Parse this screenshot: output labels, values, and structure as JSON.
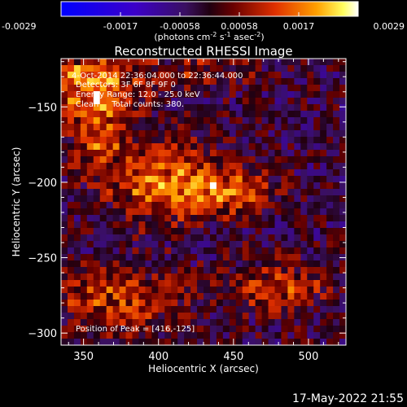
{
  "chart_data": {
    "type": "heatmap",
    "title": "Reconstructed RHESSI Image",
    "xlabel": "Heliocentric X (arcsec)",
    "ylabel": "Heliocentric Y (arcsec)",
    "xlim": [
      335,
      525
    ],
    "ylim": [
      -308,
      -118
    ],
    "x_ticks": [
      350,
      400,
      450,
      500
    ],
    "y_ticks": [
      -150,
      -200,
      -250,
      -300
    ],
    "colorbar": {
      "ticks": [
        "-0.0029",
        "-0.0017",
        "-0.00058",
        "0.00058",
        "0.0017",
        "0.0029"
      ],
      "range": [
        -0.0029,
        0.0029
      ],
      "unit_text": "(photons cm",
      "unit_sup1": "-2",
      "unit_mid1": " s",
      "unit_sup2": "-1",
      "unit_mid2": " asec",
      "unit_sup3": "-2",
      "unit_end": ")"
    },
    "info_lines": [
      "4-Oct-2014 22:36:04.000 to 22:36:44.000",
      "Detectors: 3F 6F 8F 9F 0",
      "Energy Range: 12.0 - 25.0 keV",
      "Clean     Total counts: 380."
    ],
    "peak_text": "Position of Peak = [416,-125]",
    "sources": [
      {
        "x": 355,
        "y": -135,
        "amp": 0.0029,
        "sx": 22,
        "sy": 15
      },
      {
        "x": 405,
        "y": -200,
        "amp": 0.0024,
        "sx": 25,
        "sy": 18
      },
      {
        "x": 448,
        "y": -207,
        "amp": 0.0021,
        "sx": 22,
        "sy": 10
      },
      {
        "x": 360,
        "y": -172,
        "amp": 0.0018,
        "sx": 14,
        "sy": 18
      },
      {
        "x": 372,
        "y": -278,
        "amp": 0.0019,
        "sx": 28,
        "sy": 15
      },
      {
        "x": 478,
        "y": -270,
        "amp": 0.0017,
        "sx": 24,
        "sy": 12
      },
      {
        "x": 430,
        "y": -125,
        "amp": 0.0012,
        "sx": 22,
        "sy": 10
      }
    ]
  },
  "timestamp": "17-May-2022 21:55"
}
